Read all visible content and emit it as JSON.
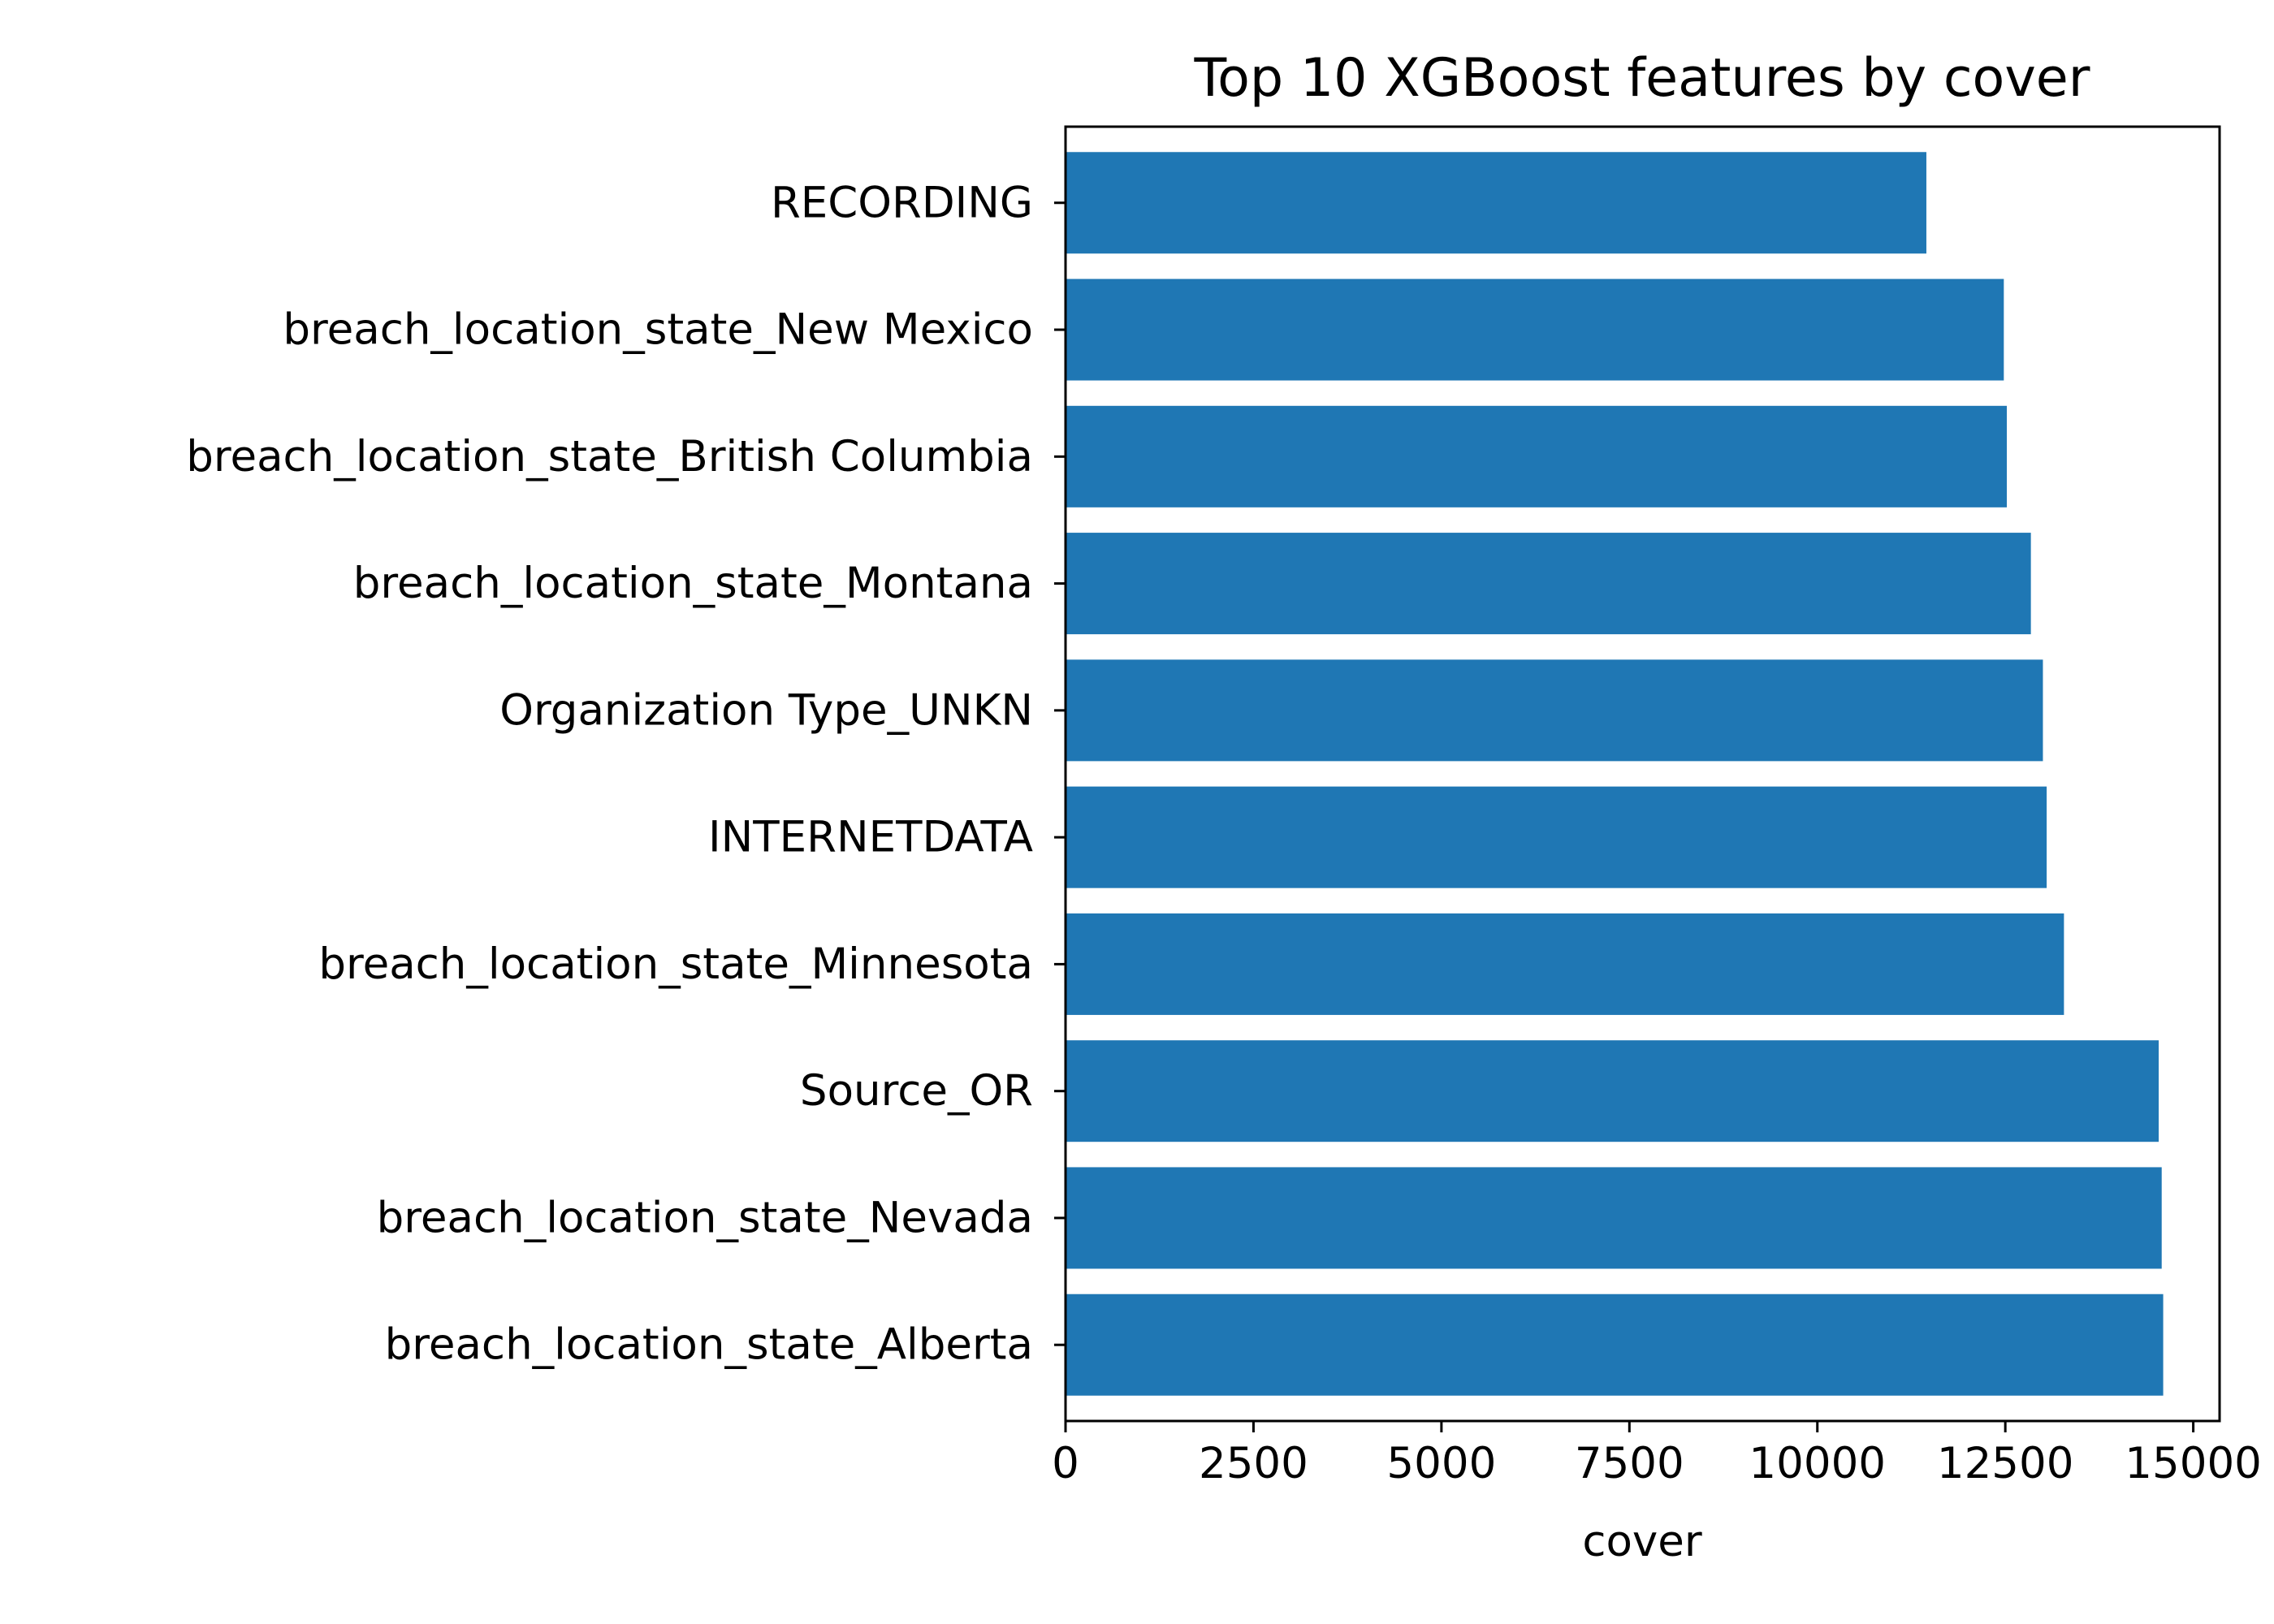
{
  "chart_data": {
    "type": "bar",
    "orientation": "horizontal",
    "title": "Top 10 XGBoost features by cover",
    "xlabel": "cover",
    "ylabel": "",
    "categories": [
      "breach_location_state_Alberta",
      "breach_location_state_Nevada",
      "Source_OR",
      "breach_location_state_Minnesota",
      "INTERNETDATA",
      "Organization Type_UNKN",
      "breach_location_state_Montana",
      "breach_location_state_British Columbia",
      "breach_location_state_New Mexico",
      "RECORDING"
    ],
    "values": [
      14600,
      14580,
      14540,
      13280,
      13050,
      13000,
      12840,
      12520,
      12480,
      11450
    ],
    "xlim": [
      0,
      15350
    ],
    "xticks": [
      0,
      2500,
      5000,
      7500,
      10000,
      12500,
      15000
    ],
    "xtick_labels": [
      "0",
      "2500",
      "5000",
      "7500",
      "10000",
      "12500",
      "15000"
    ],
    "bar_color": "#1f77b4",
    "grid": false,
    "legend": "none"
  }
}
